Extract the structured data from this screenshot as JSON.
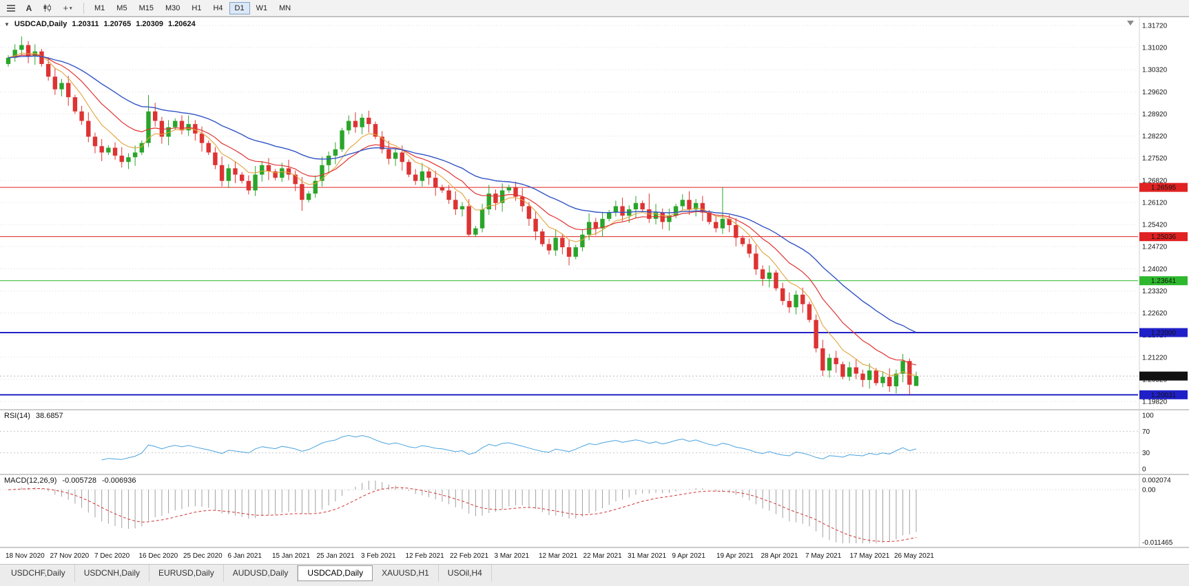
{
  "toolbar": {
    "text_tool_label": "A",
    "timeframes": [
      "M1",
      "M5",
      "M15",
      "M30",
      "H1",
      "H4",
      "D1",
      "W1",
      "MN"
    ],
    "active_timeframe": "D1"
  },
  "chart_header": {
    "collapse_icon": "▼",
    "symbol": "USDCAD,Daily",
    "open": "1.20311",
    "high": "1.20765",
    "low": "1.20309",
    "close": "1.20624"
  },
  "chart_data": {
    "type": "candlestick",
    "symbol": "USDCAD",
    "timeframe": "Daily",
    "x_labels": [
      "18 Nov 2020",
      "27 Nov 2020",
      "7 Dec 2020",
      "16 Dec 2020",
      "25 Dec 2020",
      "6 Jan 2021",
      "15 Jan 2021",
      "25 Jan 2021",
      "3 Feb 2021",
      "12 Feb 2021",
      "22 Feb 2021",
      "3 Mar 2021",
      "12 Mar 2021",
      "22 Mar 2021",
      "31 Mar 2021",
      "9 Apr 2021",
      "19 Apr 2021",
      "28 Apr 2021",
      "7 May 2021",
      "17 May 2021",
      "26 May 2021"
    ],
    "y_axis": {
      "top": 1.3172,
      "bottom": 1.1982,
      "labels": [
        "1.31720",
        "1.31020",
        "1.30320",
        "1.29620",
        "1.28920",
        "1.28220",
        "1.27520",
        "1.26820",
        "1.26120",
        "1.25420",
        "1.24720",
        "1.24020",
        "1.23320",
        "1.22620",
        "1.21920",
        "1.21220",
        "1.20520",
        "1.19820"
      ]
    },
    "candles": {
      "first_open": 1.305,
      "up_color": "#2aa52a",
      "down_color": "#dd3333",
      "wick_base": 0.0008,
      "closes": [
        1.307,
        1.3095,
        1.311,
        1.3075,
        1.309,
        1.305,
        1.301,
        1.297,
        1.299,
        1.2945,
        1.29,
        1.287,
        1.282,
        1.279,
        1.277,
        1.2785,
        1.276,
        1.274,
        1.2755,
        1.277,
        1.28,
        1.29,
        1.287,
        1.282,
        1.285,
        1.287,
        1.284,
        1.286,
        1.283,
        1.28,
        1.277,
        1.273,
        1.268,
        1.272,
        1.27,
        1.268,
        1.265,
        1.27,
        1.273,
        1.271,
        1.269,
        1.272,
        1.27,
        1.267,
        1.262,
        1.264,
        1.268,
        1.273,
        1.276,
        1.278,
        1.284,
        1.287,
        1.285,
        1.288,
        1.286,
        1.282,
        1.278,
        1.275,
        1.277,
        1.274,
        1.27,
        1.268,
        1.271,
        1.269,
        1.266,
        1.265,
        1.262,
        1.259,
        1.26,
        1.251,
        1.253,
        1.259,
        1.264,
        1.261,
        1.265,
        1.266,
        1.263,
        1.26,
        1.256,
        1.252,
        1.248,
        1.246,
        1.25,
        1.247,
        1.244,
        1.247,
        1.251,
        1.255,
        1.253,
        1.256,
        1.258,
        1.26,
        1.257,
        1.259,
        1.261,
        1.259,
        1.256,
        1.258,
        1.255,
        1.257,
        1.26,
        1.262,
        1.259,
        1.261,
        1.258,
        1.255,
        1.253,
        1.256,
        1.254,
        1.25,
        1.248,
        1.245,
        1.24,
        1.237,
        1.239,
        1.234,
        1.23,
        1.228,
        1.232,
        1.229,
        1.224,
        1.215,
        1.208,
        1.212,
        1.21,
        1.206,
        1.209,
        1.207,
        1.205,
        1.208,
        1.204,
        1.206,
        1.203,
        1.207,
        1.211,
        1.2035,
        1.20624
      ],
      "overrides": {
        "21": {
          "h": 1.2952
        },
        "44": {
          "l": 1.2585
        },
        "53": {
          "h": 1.2892
        },
        "69": {
          "l": 1.2504
        },
        "96": {
          "h": 1.264
        },
        "107": {
          "h": 1.266
        },
        "135": {
          "l": 1.2004
        },
        "136": {
          "o": 1.20311,
          "h": 1.20765,
          "l": 1.20309,
          "c": 1.20624
        }
      }
    },
    "moving_averages": [
      {
        "name": "ma-fast",
        "period": 7,
        "color": "#e2a33b",
        "width": 1.1
      },
      {
        "name": "ma-medium",
        "period": 14,
        "color": "#e03232",
        "width": 1.2
      },
      {
        "name": "ma-slow",
        "period": 30,
        "color": "#3254c4",
        "width": 1.4
      }
    ],
    "hlines": [
      {
        "price": 1.26595,
        "label": "1.26595",
        "color": "#e02222",
        "width": 1
      },
      {
        "price": 1.25036,
        "label": "1.25036",
        "color": "#e02222",
        "width": 1
      },
      {
        "price": 1.23641,
        "label": "1.23641",
        "color": "#2db82d",
        "width": 1
      },
      {
        "price": 1.22,
        "label": "1.22000",
        "color": "#2020c8",
        "width": 2
      },
      {
        "price": 1.20031,
        "label": "1.20031",
        "color": "#2020c8",
        "width": 2
      }
    ],
    "current_price": {
      "value": 1.20624,
      "label": "1.20624",
      "tag_color": "#111111"
    },
    "rsi": {
      "label": "RSI(14)",
      "value_text": "38.6857",
      "period": 14,
      "color": "#4aa3df",
      "levels": [
        100,
        70,
        30,
        0
      ],
      "level_labels": [
        "100",
        "70",
        "30",
        "0"
      ]
    },
    "macd": {
      "label": "MACD(12,26,9)",
      "value1": "-0.005728",
      "value2": "-0.006936",
      "fast": 12,
      "slow": 26,
      "signal": 9,
      "ylim": [
        -0.011465,
        0.002074
      ],
      "axis_labels": [
        "0.002074",
        "0.00",
        "-0.011465"
      ],
      "hist_color": "#a0a0a0",
      "signal_color": "#d23333"
    }
  },
  "tabs": {
    "items": [
      {
        "label": "USDCHF,Daily",
        "active": false
      },
      {
        "label": "USDCNH,Daily",
        "active": false
      },
      {
        "label": "EURUSD,Daily",
        "active": false
      },
      {
        "label": "AUDUSD,Daily",
        "active": false
      },
      {
        "label": "USDCAD,Daily",
        "active": true
      },
      {
        "label": "XAUUSD,H1",
        "active": false
      },
      {
        "label": "USOil,H4",
        "active": false
      }
    ]
  }
}
